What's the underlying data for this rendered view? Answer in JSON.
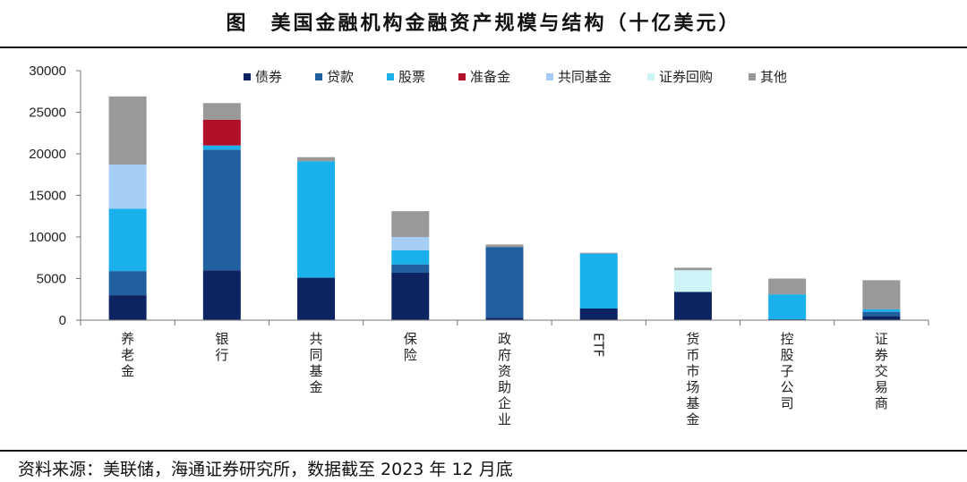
{
  "title": "图　美国金融机构金融资产规模与结构（十亿美元）",
  "source": "资料来源：美联储，海通证券研究所，数据截至 2023 年 12 月底",
  "chart_data": {
    "type": "bar",
    "stacked": true,
    "ylim": [
      0,
      30000
    ],
    "yticks": [
      0,
      5000,
      10000,
      15000,
      20000,
      25000,
      30000
    ],
    "legend_position": "top",
    "categories": [
      "养老金",
      "银行",
      "共同基金",
      "保险",
      "政府资助企业",
      "ETF",
      "货币市场基金",
      "控股子公司",
      "证券交易商"
    ],
    "category_vertical": [
      true,
      true,
      true,
      true,
      true,
      false,
      true,
      true,
      true
    ],
    "series": [
      {
        "name": "债券",
        "color": "#0c2461",
        "values": [
          3000,
          6000,
          5100,
          5700,
          300,
          1400,
          3400,
          100,
          500
        ]
      },
      {
        "name": "贷款",
        "color": "#2160a0",
        "values": [
          2900,
          14500,
          0,
          1000,
          8500,
          0,
          0,
          0,
          500
        ]
      },
      {
        "name": "股票",
        "color": "#1ab0ec",
        "values": [
          7500,
          500,
          14000,
          1700,
          0,
          6600,
          0,
          3000,
          300
        ]
      },
      {
        "name": "准备金",
        "color": "#b0102a",
        "values": [
          0,
          3100,
          0,
          0,
          0,
          0,
          0,
          0,
          0
        ]
      },
      {
        "name": "共同基金",
        "color": "#a6cef4",
        "values": [
          5300,
          0,
          0,
          1600,
          0,
          0,
          0,
          0,
          0
        ]
      },
      {
        "name": "证券回购",
        "color": "#cdf5f8",
        "values": [
          0,
          0,
          0,
          0,
          0,
          0,
          2600,
          0,
          0
        ]
      },
      {
        "name": "其他",
        "color": "#999999",
        "values": [
          8200,
          2000,
          500,
          3100,
          300,
          100,
          300,
          1900,
          3500
        ]
      }
    ]
  }
}
